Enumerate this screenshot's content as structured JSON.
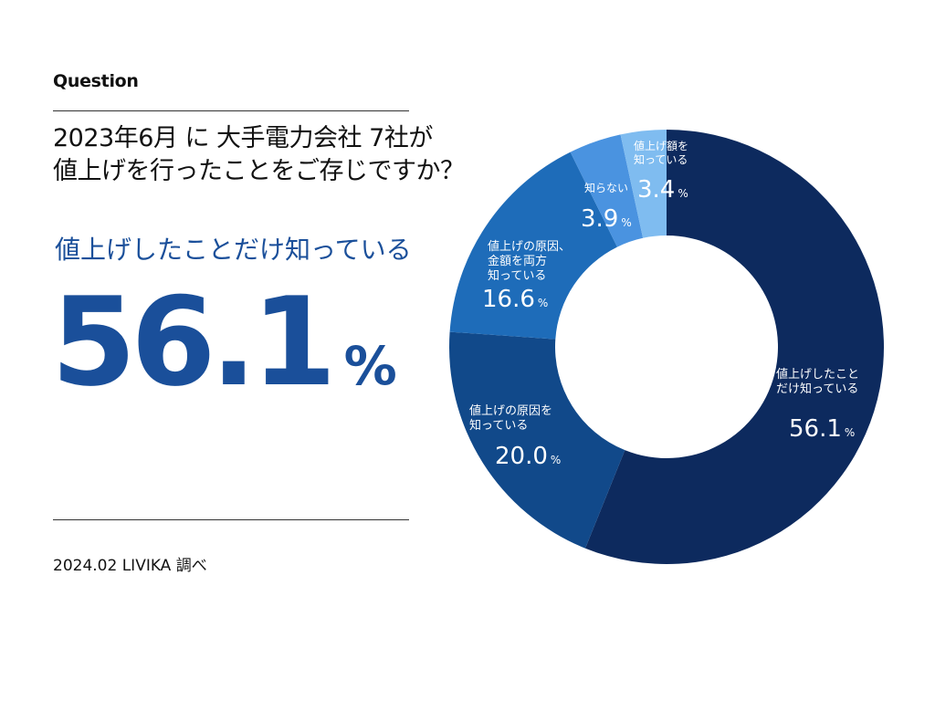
{
  "header": {
    "question_label": "Question",
    "question_line1": "2023年6月 に 大手電力会社 7社が",
    "question_line2": "値上げを行ったことをご存じですか？"
  },
  "highlight": {
    "label": "値上げしたことだけ知っている",
    "value": "56.1",
    "unit": "%"
  },
  "footer": {
    "source": "2024.02 LIVIKA 調べ"
  },
  "colors": {
    "accent": "#1a4f9a",
    "slice_1": "#0d2a5e",
    "slice_2": "#11498a",
    "slice_3": "#1e6cb9",
    "slice_4": "#4a93e0",
    "slice_5": "#7fbcf0"
  },
  "chart_data": {
    "type": "pie",
    "variant": "donut",
    "title": "2023年6月 に 大手電力会社 7社が 値上げを行ったことをご存じですか？",
    "unit": "%",
    "slices": [
      {
        "label_lines": [
          "値上げしたこと",
          "だけ知っている"
        ],
        "value": 56.1,
        "value_text": "56.1",
        "color": "#0d2a5e"
      },
      {
        "label_lines": [
          "値上げの原因を",
          "知っている"
        ],
        "value": 20.0,
        "value_text": "20.0",
        "color": "#11498a"
      },
      {
        "label_lines": [
          "値上げの原因、",
          "金額を両方",
          "知っている"
        ],
        "value": 16.6,
        "value_text": "16.6",
        "color": "#1e6cb9"
      },
      {
        "label_lines": [
          "知らない"
        ],
        "value": 3.9,
        "value_text": "3.9",
        "color": "#4a93e0"
      },
      {
        "label_lines": [
          "値上げ額を",
          "知っている"
        ],
        "value": 3.4,
        "value_text": "3.4",
        "color": "#7fbcf0"
      }
    ]
  }
}
